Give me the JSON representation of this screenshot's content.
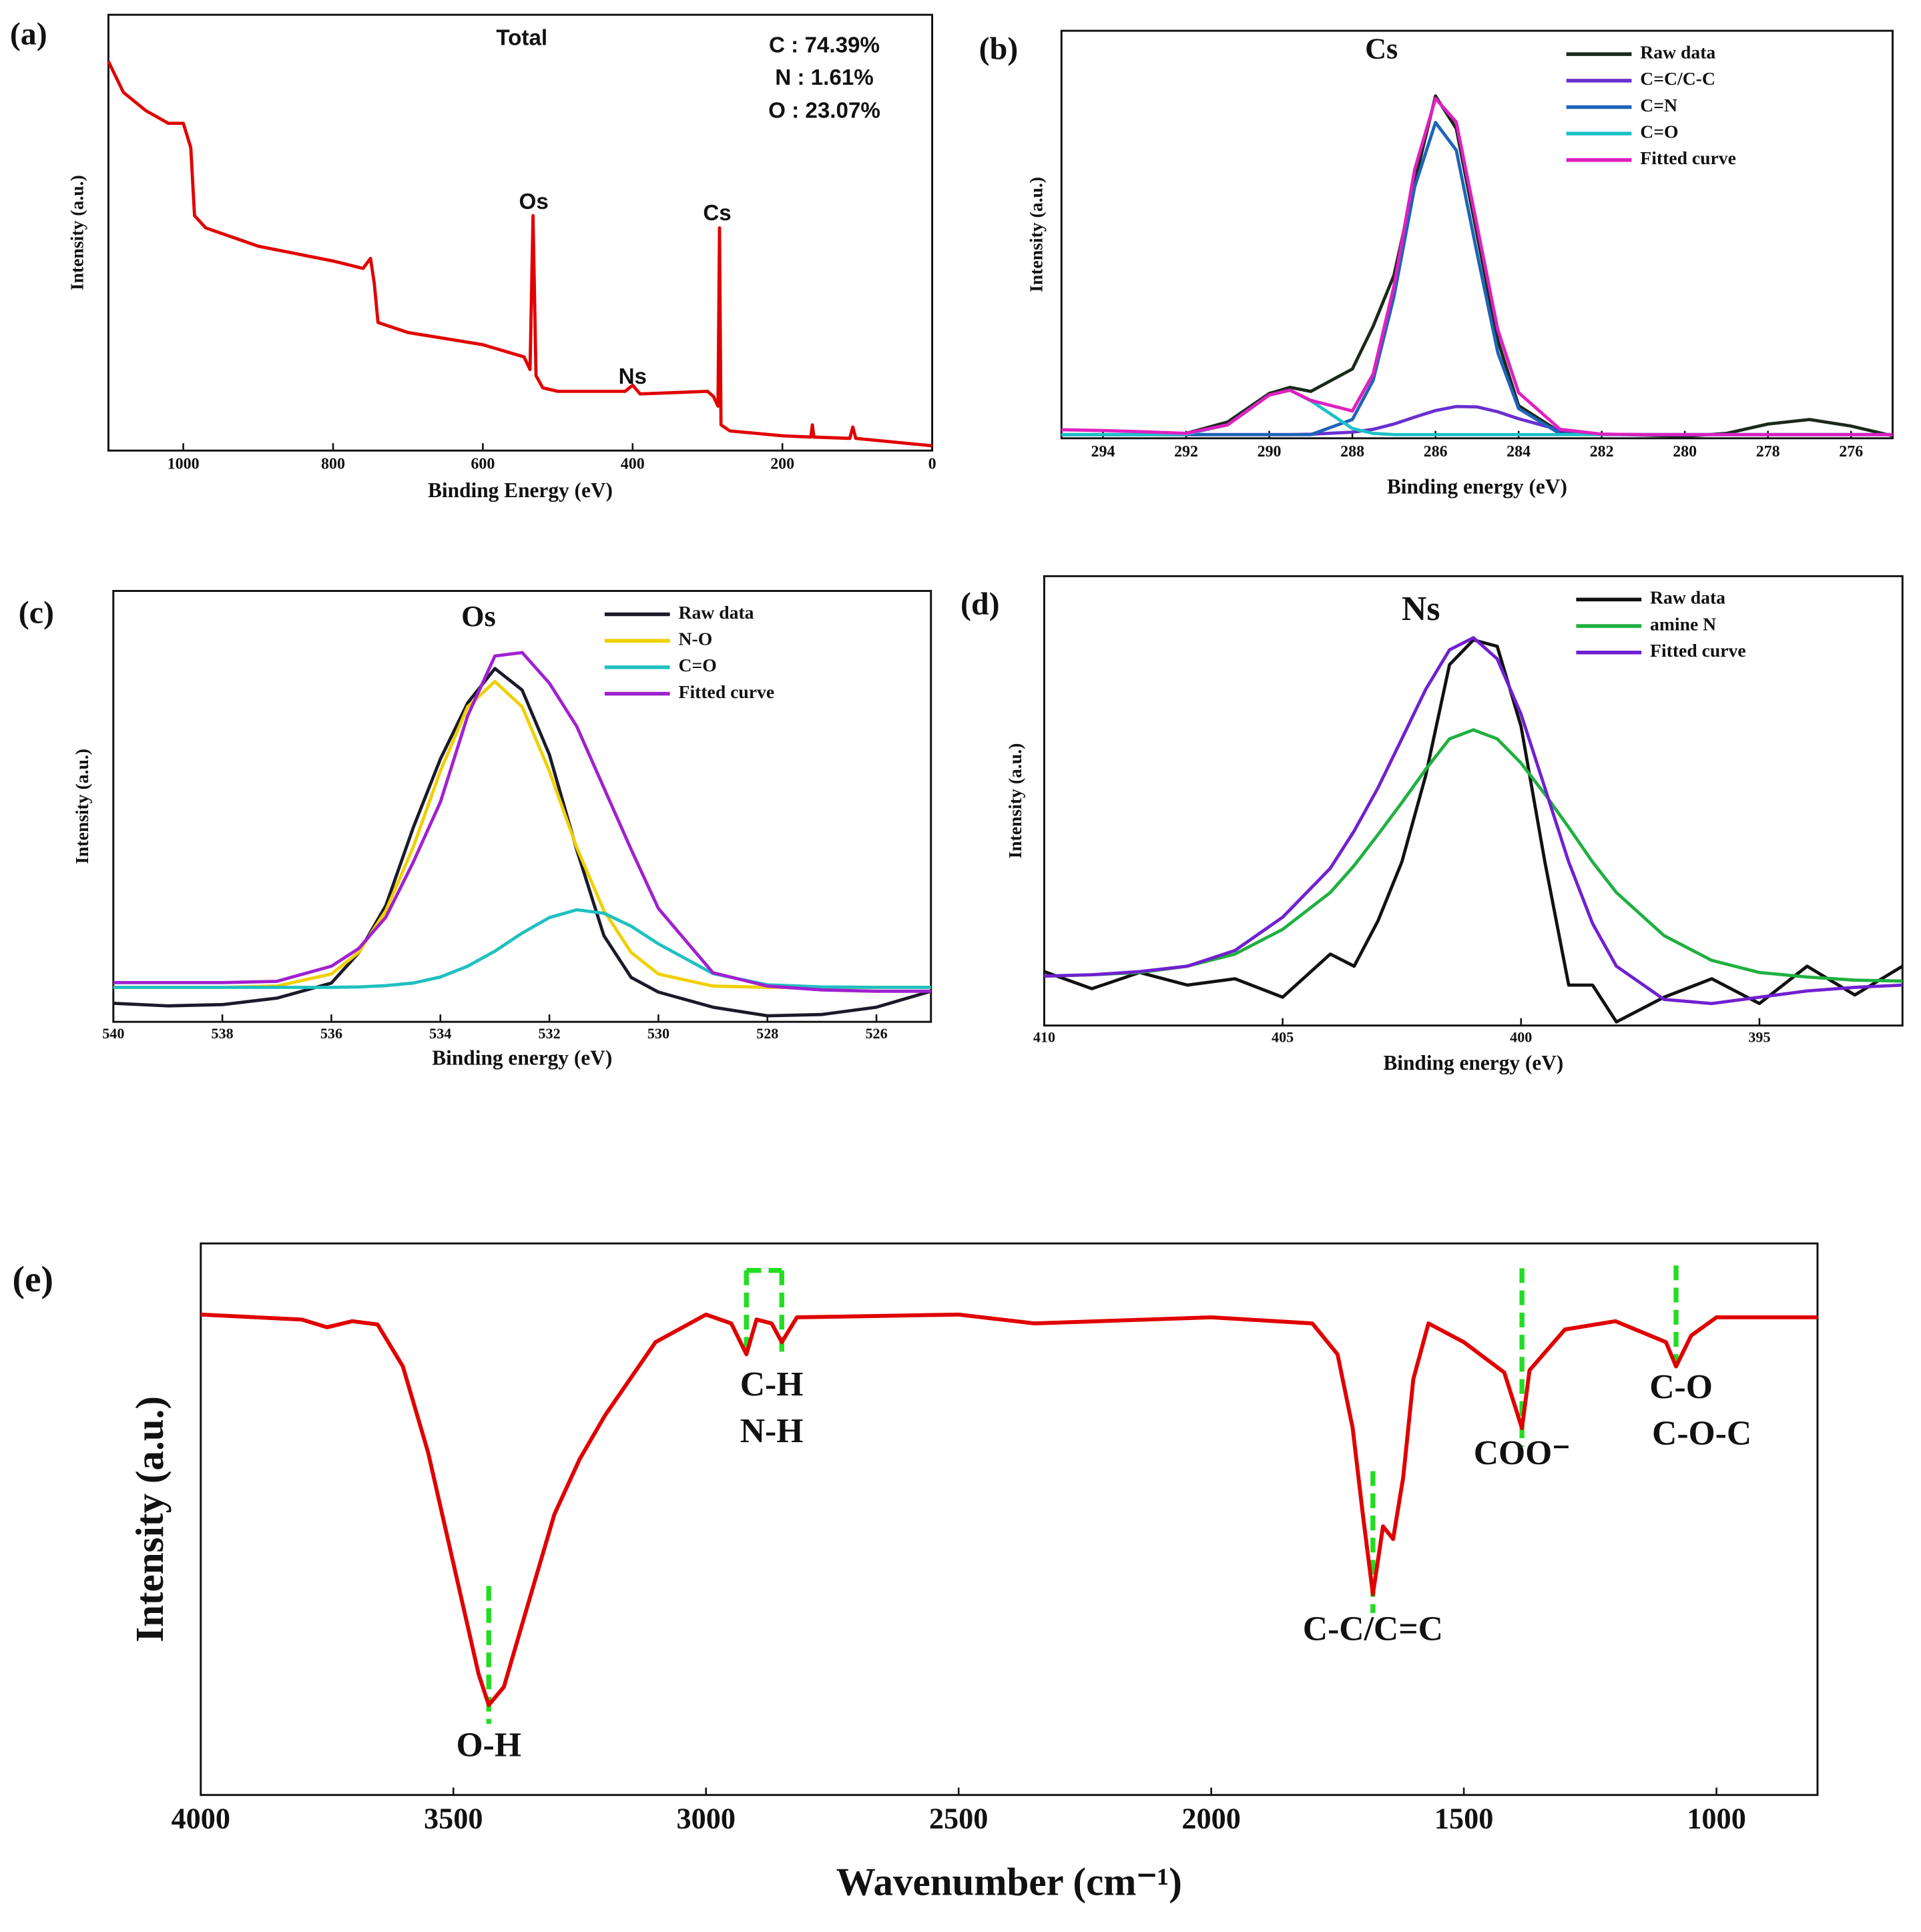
{
  "chart_data": [
    {
      "type": "line",
      "panel_label": "(a)",
      "xlabel": "Binding Energy (eV)",
      "ylabel": "Intensity (a.u.)",
      "xlim": [
        1100,
        0
      ],
      "ylim": [
        0,
        100
      ],
      "xticks": [
        1000,
        800,
        600,
        400,
        200,
        0
      ],
      "x": [
        1100,
        1080,
        1050,
        1020,
        1000,
        990,
        985,
        970,
        900,
        800,
        760,
        750,
        745,
        740,
        700,
        600,
        545,
        537,
        533,
        529,
        520,
        500,
        410,
        400,
        390,
        300,
        292,
        286,
        284,
        282,
        270,
        200,
        162,
        160,
        158,
        110,
        106,
        102,
        0
      ],
      "series": [
        {
          "color": "#e00000",
          "values": [
            89.3,
            82.2,
            78.0,
            75.1,
            75.1,
            69.5,
            53.9,
            51.1,
            46.9,
            43.5,
            41.8,
            44.1,
            38.4,
            29.4,
            27.1,
            24.3,
            21.5,
            18.6,
            53.9,
            17.2,
            14.4,
            13.6,
            13.6,
            15.0,
            13.0,
            13.6,
            12.4,
            10.2,
            51.1,
            5.9,
            4.5,
            3.4,
            3.1,
            5.9,
            3.1,
            2.8,
            5.4,
            2.8,
            1.1
          ]
        }
      ],
      "annotations": [
        {
          "text": "Total",
          "x": 548,
          "y": 94.4
        },
        {
          "text": "C : 74.39%",
          "x": 144,
          "y": 92.7
        },
        {
          "text": "N : 1.61%",
          "x": 144,
          "y": 85.3
        },
        {
          "text": "O : 23.07%",
          "x": 144,
          "y": 77.7
        },
        {
          "text": "Os",
          "x": 532,
          "y": 56.8
        },
        {
          "text": "Ns",
          "x": 400,
          "y": 16.7
        },
        {
          "text": "Cs",
          "x": 287,
          "y": 54.2
        }
      ]
    },
    {
      "type": "line",
      "panel_label": "(b)",
      "xlabel": "Binding energy (eV)",
      "ylabel": "Intensity (a.u.)",
      "xlim": [
        295,
        275
      ],
      "ylim": [
        0,
        100
      ],
      "xticks": [
        294,
        292,
        290,
        288,
        286,
        284,
        282,
        280,
        278,
        276
      ],
      "legend": "upper right",
      "x": [
        295,
        294,
        293,
        292,
        291,
        290,
        289.5,
        289,
        288,
        287.5,
        287,
        286.5,
        286,
        285.5,
        285,
        284.5,
        284,
        283,
        282,
        281,
        280,
        279,
        278,
        277,
        276,
        275
      ],
      "series": [
        {
          "name": "Raw data",
          "color": "#1a2a1a",
          "values": [
            null,
            null,
            null,
            1.2,
            4,
            11,
            12.5,
            11.5,
            17,
            27.5,
            40,
            63,
            84,
            76,
            50,
            24,
            8,
            1.5,
            1,
            0.8,
            0.5,
            1.2,
            3.5,
            4.6,
            3,
            0.6
          ]
        },
        {
          "name": "C=C/C-C",
          "color": "#6a2fd0",
          "values": [
            0.9,
            0.9,
            0.9,
            0.9,
            0.9,
            0.9,
            0.9,
            1.0,
            1.5,
            2.2,
            3.5,
            5.2,
            6.8,
            7.8,
            7.7,
            6.5,
            4.8,
            2.0,
            1.0,
            0.9,
            0.9,
            0.9,
            0.9,
            0.9,
            0.9,
            0.9
          ]
        },
        {
          "name": "C=N",
          "color": "#1f64b8",
          "values": [
            0.9,
            0.9,
            0.9,
            0.9,
            0.9,
            0.9,
            0.9,
            0.9,
            4.6,
            14.2,
            34.7,
            61.7,
            77.5,
            70.7,
            45.4,
            21.0,
            7.3,
            1.1,
            0.9,
            0.9,
            0.9,
            0.9,
            0.9,
            0.9,
            0.9,
            0.9
          ]
        },
        {
          "name": "C=O",
          "color": "#1cc0c8",
          "values": [
            0.9,
            0.9,
            0.9,
            1.0,
            3.3,
            10.6,
            11.8,
            9.2,
            2.4,
            1.2,
            0.9,
            0.9,
            0.9,
            0.9,
            0.9,
            0.9,
            0.9,
            0.9,
            0.9,
            0.9,
            0.9,
            0.9,
            0.9,
            0.9,
            0.9,
            0.9
          ]
        },
        {
          "name": "Fitted curve",
          "color": "#e020c0",
          "values": [
            2.1,
            1.9,
            1.6,
            1.2,
            3.3,
            10.6,
            11.8,
            9.3,
            6.7,
            15.8,
            37.3,
            66.0,
            83.4,
            77.6,
            52.2,
            26.6,
            11.2,
            2.2,
            1.0,
            0.9,
            0.9,
            0.9,
            0.9,
            0.9,
            0.9,
            0.9
          ]
        }
      ],
      "annotations": [
        {
          "text": "Cs",
          "x": 287.3,
          "y": 94.9
        }
      ]
    },
    {
      "type": "line",
      "panel_label": "(c)",
      "xlabel": "Binding energy (eV)",
      "ylabel": "Intensity (a.u.)",
      "xlim": [
        540,
        525
      ],
      "ylim": [
        0,
        100
      ],
      "xticks": [
        540,
        538,
        536,
        534,
        532,
        530,
        528,
        526
      ],
      "legend": "upper right",
      "x": [
        540,
        539,
        538,
        537,
        536,
        535.5,
        535,
        534.5,
        534,
        533.5,
        533,
        532.5,
        532,
        531.5,
        531,
        530.5,
        530,
        529,
        528,
        527,
        526,
        525
      ],
      "series": [
        {
          "name": "Raw data",
          "color": "#1a1a2a",
          "values": [
            4.3,
            3.7,
            4.0,
            5.5,
            9,
            16,
            27,
            45,
            61,
            74,
            82,
            77,
            62,
            40,
            20,
            10.3,
            6.9,
            3.4,
            1.4,
            1.7,
            3.4,
            7.1
          ]
        },
        {
          "name": "N-O",
          "color": "#f0d000",
          "values": [
            8,
            8,
            8,
            8.3,
            11.1,
            16.1,
            25.8,
            40.5,
            58.2,
            73.1,
            79,
            73.1,
            58.2,
            40.5,
            25.8,
            16.1,
            11.1,
            8.3,
            8,
            8,
            8,
            8
          ]
        },
        {
          "name": "C=O",
          "color": "#20c0c0",
          "values": [
            8,
            8,
            8,
            8,
            8,
            8.1,
            8.4,
            9.0,
            10.4,
            12.9,
            16.4,
            20.6,
            24.2,
            26.0,
            25.2,
            22.2,
            18.1,
            11.2,
            8.6,
            8.1,
            8,
            8
          ]
        },
        {
          "name": "Fitted curve",
          "color": "#a020d0",
          "values": [
            9.1,
            9.1,
            9.1,
            9.4,
            12.9,
            17,
            24.3,
            37,
            51,
            71,
            84.9,
            85.7,
            78.6,
            68.6,
            54.3,
            40,
            26.3,
            11.4,
            8.3,
            7.4,
            7.1,
            7.1
          ]
        }
      ],
      "annotations": [
        {
          "text": "Os",
          "x": 533.3,
          "y": 93.4
        }
      ]
    },
    {
      "type": "line",
      "panel_label": "(d)",
      "xlabel": "Binding energy (eV)",
      "ylabel": "Intensity (a.u.)",
      "xlim": [
        410,
        392
      ],
      "ylim": [
        0,
        100
      ],
      "xticks": [
        410,
        405,
        400,
        395
      ],
      "legend": "upper right",
      "x": [
        410,
        409,
        408,
        407,
        406,
        405,
        404,
        403.5,
        403,
        402.5,
        402,
        401.5,
        401,
        400.5,
        400,
        399.5,
        399,
        398.5,
        398,
        397,
        396,
        395,
        394,
        393,
        392
      ],
      "series": [
        {
          "name": "Raw data",
          "color": "#111111",
          "values": [
            12,
            8.2,
            11.8,
            9.0,
            10.4,
            6.3,
            15.9,
            13.2,
            23.3,
            36.4,
            55.6,
            80.3,
            85.8,
            84.4,
            66.6,
            36.4,
            9,
            9,
            0.8,
            6.3,
            10.4,
            4.9,
            13.2,
            6.8,
            13.2
          ]
        },
        {
          "name": "amine N",
          "color": "#20b040",
          "values": [
            11,
            11.3,
            11.8,
            13.2,
            15.9,
            21.4,
            29.6,
            35.6,
            42.5,
            49.6,
            57,
            63.8,
            65.8,
            63.8,
            58.4,
            51.5,
            44.1,
            36.4,
            29.6,
            20,
            14.5,
            11.8,
            10.8,
            10.1,
            9.9
          ]
        },
        {
          "name": "Fitted curve",
          "color": "#7020d0",
          "values": [
            11,
            11.3,
            12,
            13.2,
            16.7,
            24.1,
            35,
            43.3,
            52.9,
            63.8,
            74.8,
            83.6,
            86.3,
            81.6,
            69.3,
            52.9,
            36.4,
            22.7,
            13.2,
            5.8,
            4.9,
            6.3,
            7.7,
            8.5,
            9.0
          ]
        }
      ],
      "annotations": [
        {
          "text": "Ns",
          "x": 402.1,
          "y": 92
        }
      ]
    },
    {
      "type": "line",
      "panel_label": "(e)",
      "xlabel": "Wavenumber (cm⁻¹)",
      "ylabel": "Intensity (a.u.)",
      "xlim": [
        4000,
        800
      ],
      "ylim": [
        0,
        100
      ],
      "xticks": [
        4000,
        3500,
        3000,
        2500,
        2000,
        1500,
        1000
      ],
      "x": [
        4000,
        3800,
        3750,
        3700,
        3650,
        3600,
        3550,
        3500,
        3450,
        3430,
        3400,
        3350,
        3300,
        3250,
        3200,
        3100,
        3000,
        2950,
        2920,
        2900,
        2870,
        2850,
        2820,
        2500,
        2350,
        2000,
        1800,
        1750,
        1720,
        1700,
        1680,
        1660,
        1640,
        1620,
        1600,
        1570,
        1500,
        1420,
        1385,
        1370,
        1300,
        1200,
        1100,
        1080,
        1050,
        1000,
        800
      ],
      "series": [
        {
          "color": "#e00000",
          "values": [
            87.1,
            86.2,
            84.8,
            85.9,
            85.3,
            77.7,
            62.1,
            42.0,
            21.9,
            16.3,
            19.6,
            35.3,
            50.9,
            60.9,
            68.8,
            82.1,
            87.1,
            85.5,
            79.9,
            86.2,
            85.5,
            82.1,
            86.6,
            87.1,
            85.5,
            86.6,
            85.5,
            79.9,
            66.5,
            50.9,
            36.4,
            48.7,
            46.4,
            57.6,
            75.4,
            85.5,
            82.1,
            76.6,
            66.5,
            77.0,
            84.4,
            85.9,
            82.1,
            77.7,
            83.3,
            86.6,
            86.6
          ]
        }
      ],
      "ref_color": "#22dd22",
      "ref_lines": [
        {
          "x": [
            3430,
            3430
          ],
          "y": [
            37.9,
            12.9
          ]
        },
        {
          "x": [
            2920,
            2920
          ],
          "y": [
            95.1,
            79.9
          ]
        },
        {
          "x": [
            2850,
            2850
          ],
          "y": [
            95.1,
            79.9
          ]
        },
        {
          "x": [
            2920,
            2850
          ],
          "y": [
            95.1,
            95.1
          ]
        },
        {
          "x": [
            1680,
            1680
          ],
          "y": [
            58.7,
            33
          ]
        },
        {
          "x": [
            1385,
            1385
          ],
          "y": [
            95.5,
            63.2
          ]
        },
        {
          "x": [
            1080,
            1080
          ],
          "y": [
            96,
            77.7
          ]
        }
      ],
      "annotations": [
        {
          "text": "O-H",
          "x": 3430,
          "y": 8.5
        },
        {
          "text": "C-H",
          "x": 2870,
          "y": 73.9
        },
        {
          "text": "N-H",
          "x": 2870,
          "y": 65.4
        },
        {
          "text": "C-C/C=C",
          "x": 1680,
          "y": 29.5
        },
        {
          "text": "COO⁻",
          "x": 1385,
          "y": 61.4
        },
        {
          "text": "C-O",
          "x": 1070,
          "y": 73.4
        },
        {
          "text": "C-O-C",
          "x": 1029,
          "y": 65
        }
      ]
    }
  ]
}
